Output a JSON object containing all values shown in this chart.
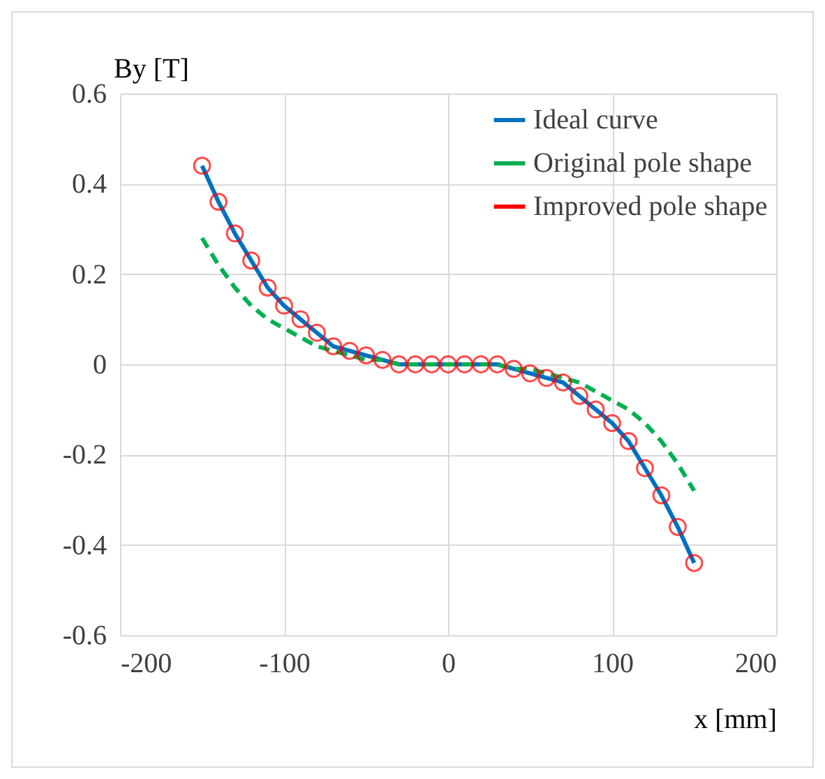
{
  "chart_data": {
    "type": "line",
    "xlabel": "x [mm]",
    "ylabel": "By [T]",
    "x": [
      -150,
      -140,
      -130,
      -120,
      -110,
      -100,
      -90,
      -80,
      -70,
      -60,
      -50,
      -40,
      -30,
      -20,
      -10,
      0,
      10,
      20,
      30,
      40,
      50,
      60,
      70,
      80,
      90,
      100,
      110,
      120,
      130,
      140,
      150
    ],
    "series": [
      {
        "name": "Ideal curve",
        "color": "#0070c0",
        "line_style": "solid",
        "values": [
          0.44,
          0.36,
          0.29,
          0.23,
          0.17,
          0.13,
          0.1,
          0.07,
          0.04,
          0.03,
          0.02,
          0.01,
          0.0,
          0.0,
          0.0,
          0,
          0.0,
          0.0,
          0.0,
          -0.01,
          -0.02,
          -0.03,
          -0.04,
          -0.07,
          -0.1,
          -0.13,
          -0.17,
          -0.23,
          -0.29,
          -0.36,
          -0.44
        ]
      },
      {
        "name": "Original pole shape",
        "color": "#00b050",
        "line_style": "dashed",
        "values": [
          0.28,
          0.22,
          0.17,
          0.13,
          0.1,
          0.08,
          0.06,
          0.04,
          0.03,
          0.02,
          0.01,
          0.01,
          0.0,
          0.0,
          0.0,
          0,
          0.0,
          0.0,
          0.0,
          -0.01,
          -0.01,
          -0.02,
          -0.03,
          -0.04,
          -0.06,
          -0.08,
          -0.1,
          -0.13,
          -0.17,
          -0.22,
          -0.28
        ]
      },
      {
        "name": "Improved pole shape",
        "color": "#ff0000",
        "type": "scatter",
        "marker": "circle",
        "values": [
          0.44,
          0.36,
          0.29,
          0.23,
          0.17,
          0.13,
          0.1,
          0.07,
          0.04,
          0.03,
          0.02,
          0.01,
          0.0,
          0.0,
          0.0,
          0,
          0.0,
          0.0,
          0.0,
          -0.01,
          -0.02,
          -0.03,
          -0.04,
          -0.07,
          -0.1,
          -0.13,
          -0.17,
          -0.23,
          -0.29,
          -0.36,
          -0.44
        ]
      }
    ],
    "xlim": [
      -200,
      200
    ],
    "xticks": [
      -200,
      -100,
      0,
      100,
      200
    ],
    "ylim": [
      -0.6,
      0.6
    ],
    "yticks": [
      -0.6,
      -0.4,
      -0.2,
      0,
      0.2,
      0.4,
      0.6
    ],
    "grid": true,
    "legend": "top right"
  }
}
